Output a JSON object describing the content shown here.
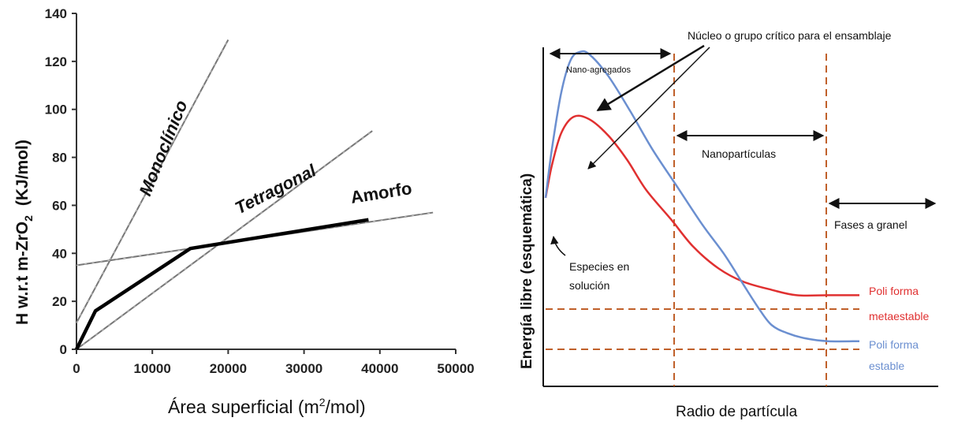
{
  "chart_data": [
    {
      "type": "line",
      "ylabel_main": "H w.r.t m-ZrO",
      "ylabel_sub": "2",
      "ylabel_unit": "(KJ/mol)",
      "xlabel_main": "Área superficial  (m",
      "xlabel_sup": "2",
      "xlabel_end": "/mol)",
      "xlim": [
        0,
        50000
      ],
      "ylim": [
        0,
        140
      ],
      "xticks": [
        0,
        10000,
        20000,
        30000,
        40000,
        50000
      ],
      "yticks": [
        0,
        20,
        40,
        60,
        80,
        100,
        120,
        140
      ],
      "series": [
        {
          "name": "Monoclínico",
          "x": [
            0,
            20000
          ],
          "y": [
            11,
            129
          ]
        },
        {
          "name": "Tetragonal",
          "x": [
            0,
            39000
          ],
          "y": [
            0,
            91
          ]
        },
        {
          "name": "Amorfo",
          "x": [
            0,
            47000
          ],
          "y": [
            35,
            57
          ]
        }
      ],
      "stable_envelope": {
        "x": [
          0,
          2500,
          15000,
          38500
        ],
        "y": [
          0,
          16,
          42,
          54
        ]
      }
    },
    {
      "type": "line",
      "xlabel": "Radio de partícula",
      "ylabel": "Energía libre (esquemática)",
      "series": [
        {
          "name": "Poli forma metaestable",
          "color": "#e03030",
          "x": [
            0,
            0.02,
            0.05,
            0.09,
            0.14,
            0.2,
            0.26,
            0.32,
            0.4,
            0.47,
            0.55,
            0.63,
            0.72,
            0.8,
            0.9,
            1.0
          ],
          "y": [
            0.56,
            0.68,
            0.8,
            0.86,
            0.85,
            0.79,
            0.7,
            0.59,
            0.48,
            0.38,
            0.3,
            0.25,
            0.22,
            0.2,
            0.2,
            0.2
          ]
        },
        {
          "name": "Poli forma estable",
          "color": "#6b8fd0",
          "x": [
            0,
            0.02,
            0.05,
            0.08,
            0.11,
            0.14,
            0.2,
            0.27,
            0.34,
            0.42,
            0.5,
            0.57,
            0.63,
            0.68,
            0.72,
            0.77,
            0.83,
            0.9,
            1.0
          ],
          "y": [
            0.56,
            0.74,
            0.95,
            1.07,
            1.1,
            1.09,
            1.01,
            0.88,
            0.74,
            0.6,
            0.46,
            0.35,
            0.24,
            0.15,
            0.09,
            0.06,
            0.04,
            0.03,
            0.03
          ]
        }
      ],
      "annotations": {
        "nano_agregados": "Nano-agregados",
        "nucleo": "Núcleo o grupo crítico para el ensamblaje",
        "nanoparticulas": "Nanopartículas",
        "fases": "Fases a granel",
        "especies_1": "Especies en",
        "especies_2": "solución",
        "meta_1": "Poli forma",
        "meta_2": "metaestable",
        "estable_1": "Poli forma",
        "estable_2": "estable"
      },
      "colors": {
        "metastable": "#e03030",
        "stable": "#6b8fd0",
        "guides": "#c0602a"
      }
    }
  ]
}
